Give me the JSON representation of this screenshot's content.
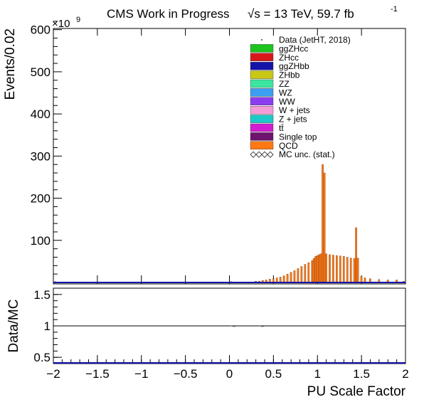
{
  "header": {
    "title": "CMS Work in Progress",
    "energy": "√s = 13 TeV, 59.7 fb",
    "lumi_exp": "-1"
  },
  "axes": {
    "ylabel_top": "Events/0.02",
    "ylabel_bottom": "Data/MC",
    "xlabel": "PU Scale Factor",
    "multiplier": "×10",
    "multiplier_exp": "9"
  },
  "chart_data": [
    {
      "type": "bar",
      "panel": "main",
      "title": "CMS Work in Progress",
      "xlabel": "",
      "ylabel": "Events/0.02",
      "xlim": [
        -2,
        2
      ],
      "ylim": [
        0,
        640
      ],
      "y_unit_multiplier": "1e9",
      "y_ticks": [
        100,
        200,
        300,
        400,
        500,
        600
      ],
      "x_ticks": [
        -2,
        -1.5,
        -1,
        -0.5,
        0,
        0.5,
        1,
        1.5,
        2
      ],
      "legend_position": "top-right",
      "legend": [
        {
          "name": "Data (JetHT, 2018)",
          "color": "#000000",
          "style": "marker"
        },
        {
          "name": "ggZHcc",
          "color": "#1ec31e",
          "style": "fill"
        },
        {
          "name": "ZHcc",
          "color": "#d7191c",
          "style": "fill"
        },
        {
          "name": "ggZHbb",
          "color": "#1414a8",
          "style": "fill"
        },
        {
          "name": "ZHbb",
          "color": "#c8c814",
          "style": "fill"
        },
        {
          "name": "ZZ",
          "color": "#3ce6a0",
          "style": "fill"
        },
        {
          "name": "WZ",
          "color": "#3c9ef0",
          "style": "fill"
        },
        {
          "name": "WW",
          "color": "#8c3cf0",
          "style": "fill"
        },
        {
          "name": "W + jets",
          "color": "#f59bd7",
          "style": "fill"
        },
        {
          "name": "Z + jets",
          "color": "#1ec8c8",
          "style": "fill"
        },
        {
          "name": "tt̄",
          "color": "#d21ed2",
          "style": "fill"
        },
        {
          "name": "Single top",
          "color": "#6e146e",
          "style": "fill"
        },
        {
          "name": "QCD",
          "color": "#ff7814",
          "style": "fill"
        },
        {
          "name": "MC unc. (stat.)",
          "color": "#000000",
          "style": "hatch"
        }
      ],
      "series": [
        {
          "name": "QCD",
          "x": [
            -1.98,
            0.02,
            0.3,
            0.34,
            0.38,
            0.42,
            0.46,
            0.5,
            0.54,
            0.58,
            0.62,
            0.66,
            0.7,
            0.74,
            0.78,
            0.82,
            0.86,
            0.9,
            0.94,
            0.96,
            0.98,
            1.0,
            1.02,
            1.04,
            1.06,
            1.08,
            1.1,
            1.14,
            1.18,
            1.22,
            1.26,
            1.3,
            1.34,
            1.38,
            1.42,
            1.44,
            1.46,
            1.5,
            1.54,
            1.6,
            1.7,
            1.8,
            1.9,
            1.98
          ],
          "values": [
            2,
            2,
            3,
            3,
            5,
            6,
            8,
            9,
            11,
            13,
            16,
            20,
            24,
            28,
            33,
            38,
            43,
            47,
            52,
            57,
            62,
            64,
            66,
            68,
            280,
            260,
            68,
            66,
            65,
            64,
            63,
            62,
            60,
            58,
            57,
            130,
            58,
            14,
            11,
            9,
            7,
            6,
            6,
            3
          ]
        }
      ]
    },
    {
      "type": "line",
      "panel": "ratio",
      "xlabel": "PU Scale Factor",
      "ylabel": "Data/MC",
      "xlim": [
        -2,
        2
      ],
      "ylim": [
        0.4,
        1.6
      ],
      "y_ticks": [
        0.5,
        1,
        1.5
      ],
      "x_ticks": [
        -2,
        -1.5,
        -1,
        -0.5,
        0,
        0.5,
        1,
        1.5,
        2
      ],
      "reference_line": 1,
      "series": [
        {
          "name": "Data/MC",
          "x": [
            0.04,
            0.36
          ],
          "values": [
            1.0,
            1.0
          ]
        }
      ]
    }
  ]
}
